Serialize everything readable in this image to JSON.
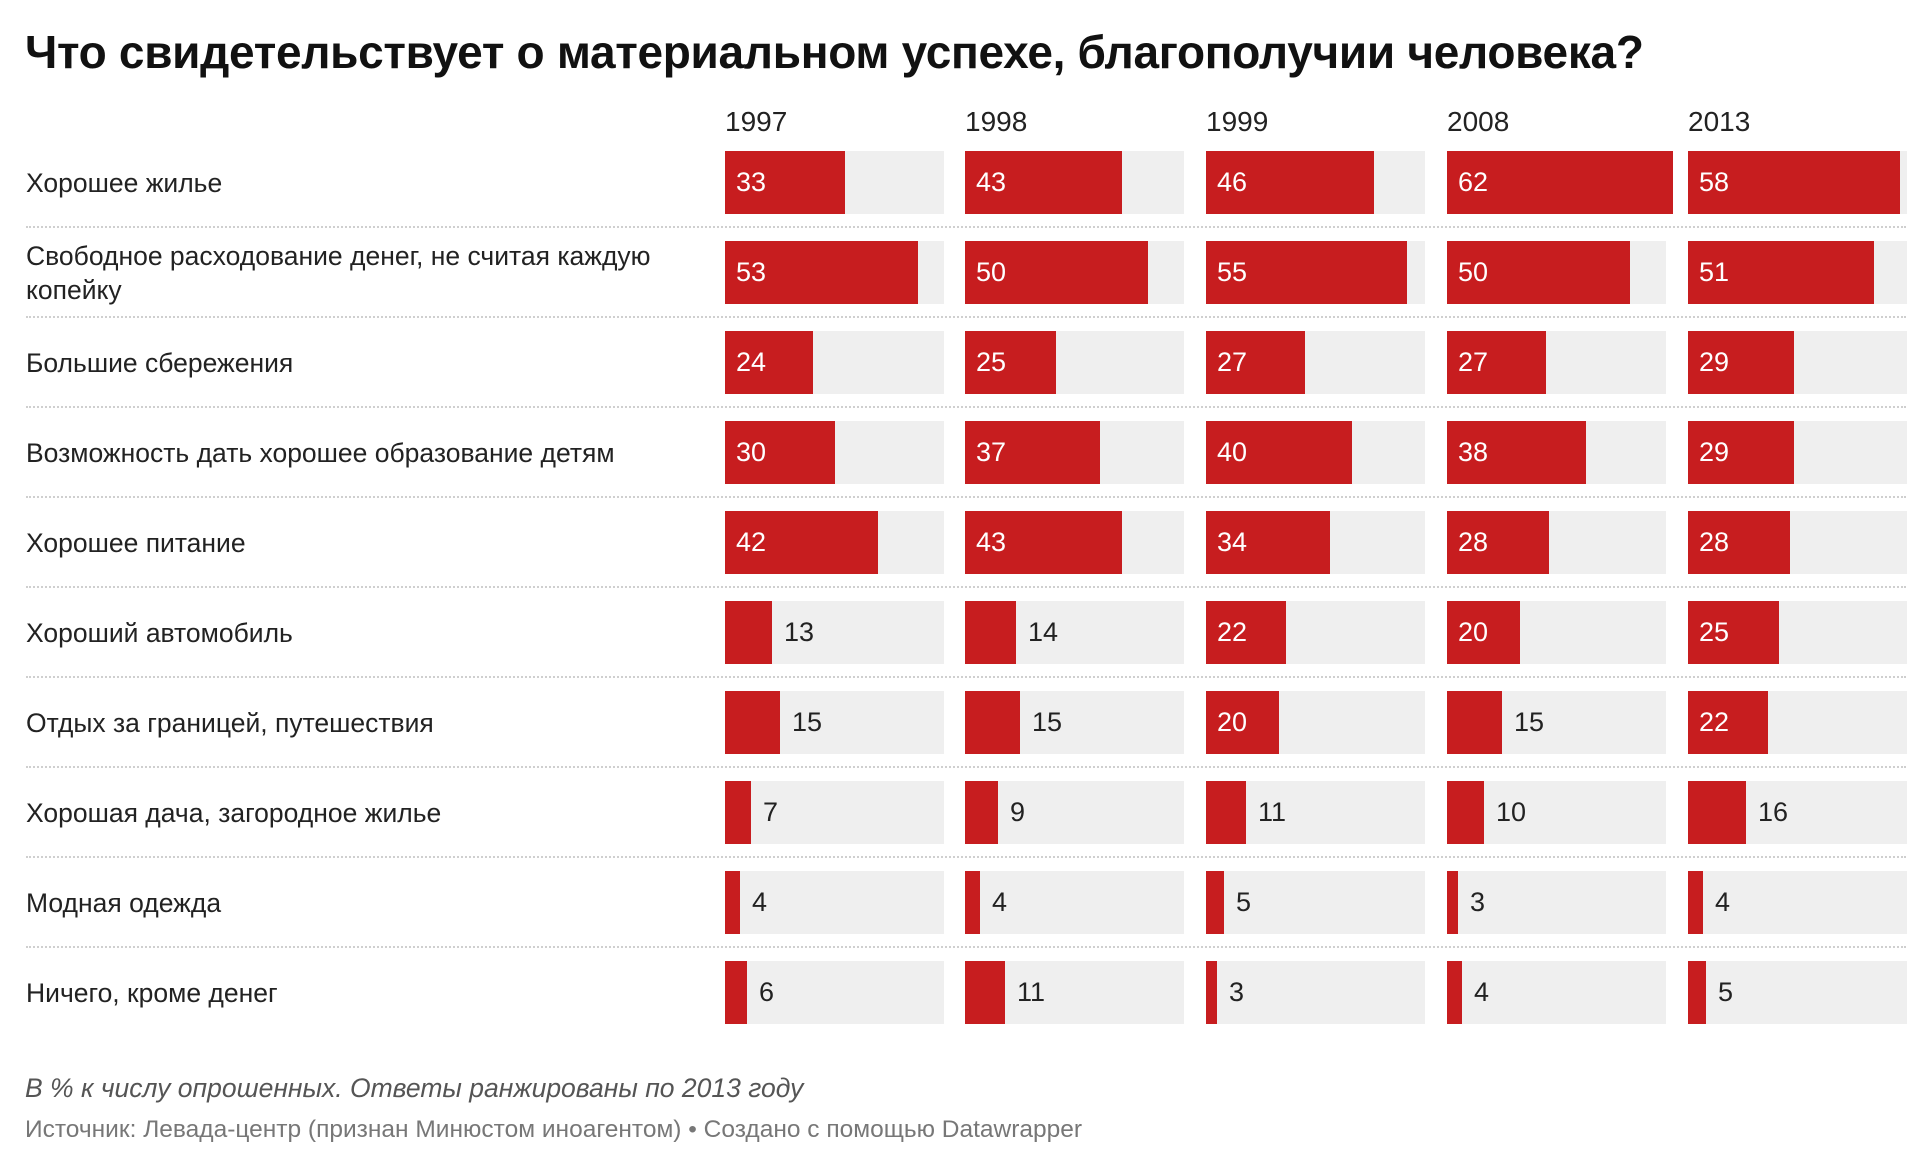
{
  "title": "Что свидетельствует о материальном успехе, благополучии человека?",
  "notes": "В % к числу опрошенных. Ответы ранжированы по 2013 году",
  "footer": {
    "source": "Источник: Левада-центр (признан Минюстом иноагентом)",
    "separator": " • ",
    "credit": "Создано с помощью Datawrapper"
  },
  "colors": {
    "bar": "#c71d1f",
    "track": "#efefef",
    "separator": "#cfcfcf"
  },
  "chart_data": {
    "type": "bar",
    "orientation": "horizontal",
    "layout": "small-multiples",
    "xlim": [
      0,
      60
    ],
    "grid": false,
    "columns": [
      "1997",
      "1998",
      "1999",
      "2008",
      "2013"
    ],
    "categories": [
      "Хорошее жилье",
      "Свободное расходование денег, не считая каждую копейку",
      "Большие сбережения",
      "Возможность дать хорошее образование детям",
      "Хорошее питание",
      "Хороший автомобиль",
      "Отдых за границей, путешествия",
      "Хорошая дача, загородное жилье",
      "Модная одежда",
      "Ничего, кроме денег"
    ],
    "series": [
      {
        "name": "1997",
        "values": [
          33,
          53,
          24,
          30,
          42,
          13,
          15,
          7,
          4,
          6
        ]
      },
      {
        "name": "1998",
        "values": [
          43,
          50,
          25,
          37,
          43,
          14,
          15,
          9,
          4,
          11
        ]
      },
      {
        "name": "1999",
        "values": [
          46,
          55,
          27,
          40,
          34,
          22,
          20,
          11,
          5,
          3
        ]
      },
      {
        "name": "2008",
        "values": [
          62,
          50,
          27,
          38,
          28,
          20,
          15,
          10,
          3,
          4
        ]
      },
      {
        "name": "2013",
        "values": [
          58,
          51,
          29,
          29,
          28,
          25,
          22,
          16,
          4,
          5
        ]
      }
    ]
  }
}
